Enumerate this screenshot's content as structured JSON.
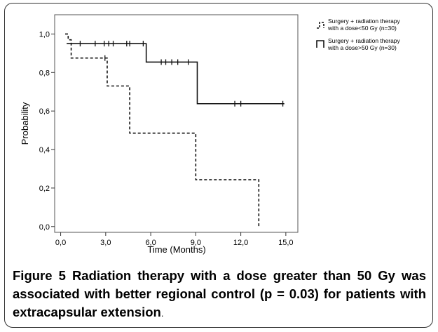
{
  "chart_data": {
    "type": "line",
    "subtype": "kaplan-meier step",
    "xlabel": "Time (Months)",
    "ylabel": "Probability",
    "xlim": [
      -0.4,
      15.8
    ],
    "ylim": [
      -0.03,
      1.1
    ],
    "x_ticks": [
      "0,0",
      "3,0",
      "6,0",
      "9,0",
      "12,0",
      "15,0"
    ],
    "x_tick_values": [
      0,
      3,
      6,
      9,
      12,
      15
    ],
    "y_ticks": [
      "0,0",
      "0,2",
      "0,4",
      "0,6",
      "0,8",
      "1,0"
    ],
    "y_tick_values": [
      0,
      0.2,
      0.4,
      0.6,
      0.8,
      1.0
    ],
    "legend_position": "right-top",
    "series": [
      {
        "name": "Surgery + radiation therapy with a dose<50 Gy (n=30)",
        "name_lines": [
          "Surgery + radiation therapy",
          "with a dose<50 Gy (n=30)"
        ],
        "style": "dashed",
        "steps": [
          [
            0.3,
            1.0
          ],
          [
            0.5,
            0.97
          ],
          [
            0.7,
            0.875
          ],
          [
            3.1,
            0.73
          ],
          [
            4.6,
            0.485
          ],
          [
            9.0,
            0.243
          ],
          [
            13.2,
            0.0
          ]
        ],
        "end_x": 13.2,
        "censors": [
          [
            2.95,
            0.875
          ]
        ]
      },
      {
        "name": "Surgery + radiation therapy with a dose>50 Gy (n=30)",
        "name_lines": [
          "Surgery + radiation therapy",
          "with a dose>50 Gy (n=30)"
        ],
        "style": "solid",
        "steps": [
          [
            0.4,
            0.95
          ],
          [
            5.7,
            0.854
          ],
          [
            9.1,
            0.638
          ]
        ],
        "end_x": 14.9,
        "censors": [
          [
            1.3,
            0.95
          ],
          [
            2.3,
            0.95
          ],
          [
            2.9,
            0.95
          ],
          [
            3.2,
            0.95
          ],
          [
            3.5,
            0.95
          ],
          [
            4.4,
            0.95
          ],
          [
            4.6,
            0.95
          ],
          [
            5.5,
            0.95
          ],
          [
            6.7,
            0.854
          ],
          [
            7.0,
            0.854
          ],
          [
            7.4,
            0.854
          ],
          [
            7.8,
            0.854
          ],
          [
            8.5,
            0.854
          ],
          [
            11.6,
            0.638
          ],
          [
            12.0,
            0.638
          ],
          [
            14.8,
            0.638
          ]
        ]
      }
    ]
  },
  "caption": {
    "label": "Figure 5",
    "text": "Radiation therapy with a dose greater than 50 Gy was associated with better regional control (p = 0.03) for patients with extracapsular extension",
    "tail": "."
  }
}
